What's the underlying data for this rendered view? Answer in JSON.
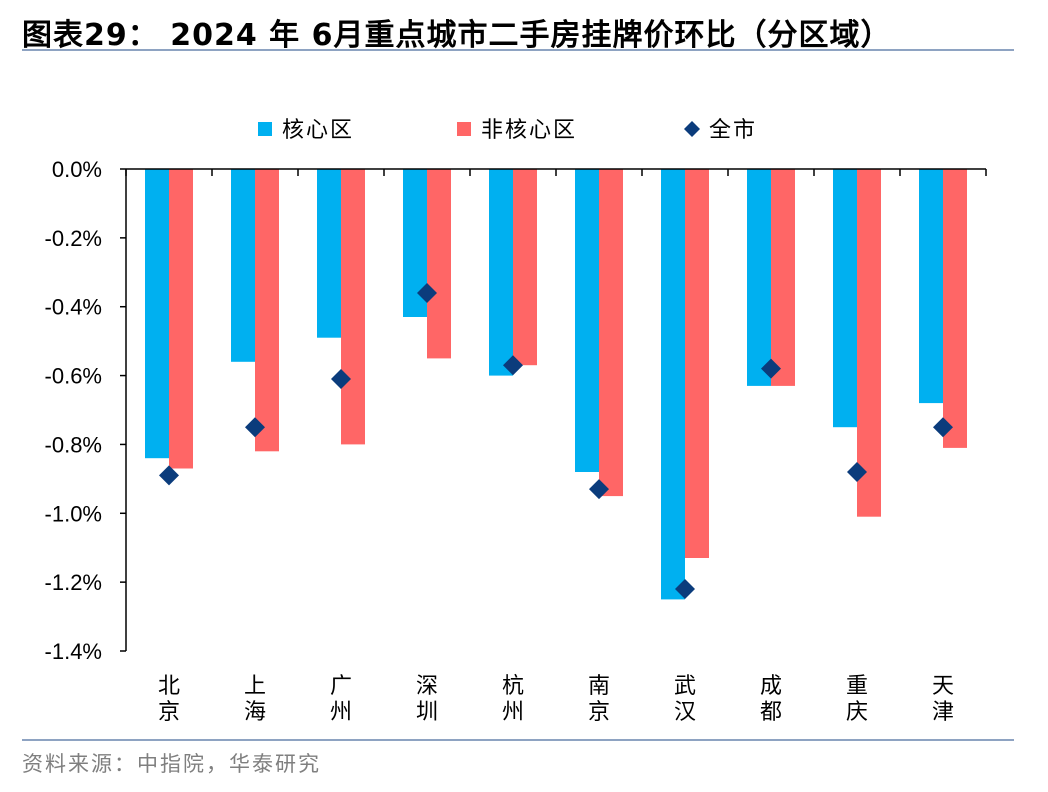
{
  "title": "图表29：  2024 年 6月重点城市二手房挂牌价环比（分区域）",
  "source": "资料来源：中指院，华泰研究",
  "chart_data": {
    "type": "bar",
    "categories": [
      [
        "北",
        "京"
      ],
      [
        "上",
        "海"
      ],
      [
        "广",
        "州"
      ],
      [
        "深",
        "圳"
      ],
      [
        "杭",
        "州"
      ],
      [
        "南",
        "京"
      ],
      [
        "武",
        "汉"
      ],
      [
        "成",
        "都"
      ],
      [
        "重",
        "庆"
      ],
      [
        "天",
        "津"
      ]
    ],
    "series": [
      {
        "name": "核心区",
        "kind": "bar",
        "color": "#00b0f0",
        "values": [
          -0.84,
          -0.56,
          -0.49,
          -0.43,
          -0.6,
          -0.88,
          -1.25,
          -0.63,
          -0.75,
          -0.68
        ]
      },
      {
        "name": "非核心区",
        "kind": "bar",
        "color": "#ff6666",
        "values": [
          -0.87,
          -0.82,
          -0.8,
          -0.55,
          -0.57,
          -0.95,
          -1.13,
          -0.63,
          -1.01,
          -0.81
        ]
      },
      {
        "name": "全市",
        "kind": "marker",
        "color": "#0b3c7c",
        "values": [
          -0.89,
          -0.75,
          -0.61,
          -0.36,
          -0.57,
          -0.93,
          -1.22,
          -0.58,
          -0.88,
          -0.75
        ]
      }
    ],
    "ylim": [
      -1.4,
      0.0
    ],
    "yticks": [
      0.0,
      -0.2,
      -0.4,
      -0.6,
      -0.8,
      -1.0,
      -1.2,
      -1.4
    ],
    "ytick_labels": [
      "0.0%",
      "-0.2%",
      "-0.4%",
      "-0.6%",
      "-0.8%",
      "-1.0%",
      "-1.2%",
      "-1.4%"
    ],
    "legend_position": "top",
    "grid": false
  }
}
